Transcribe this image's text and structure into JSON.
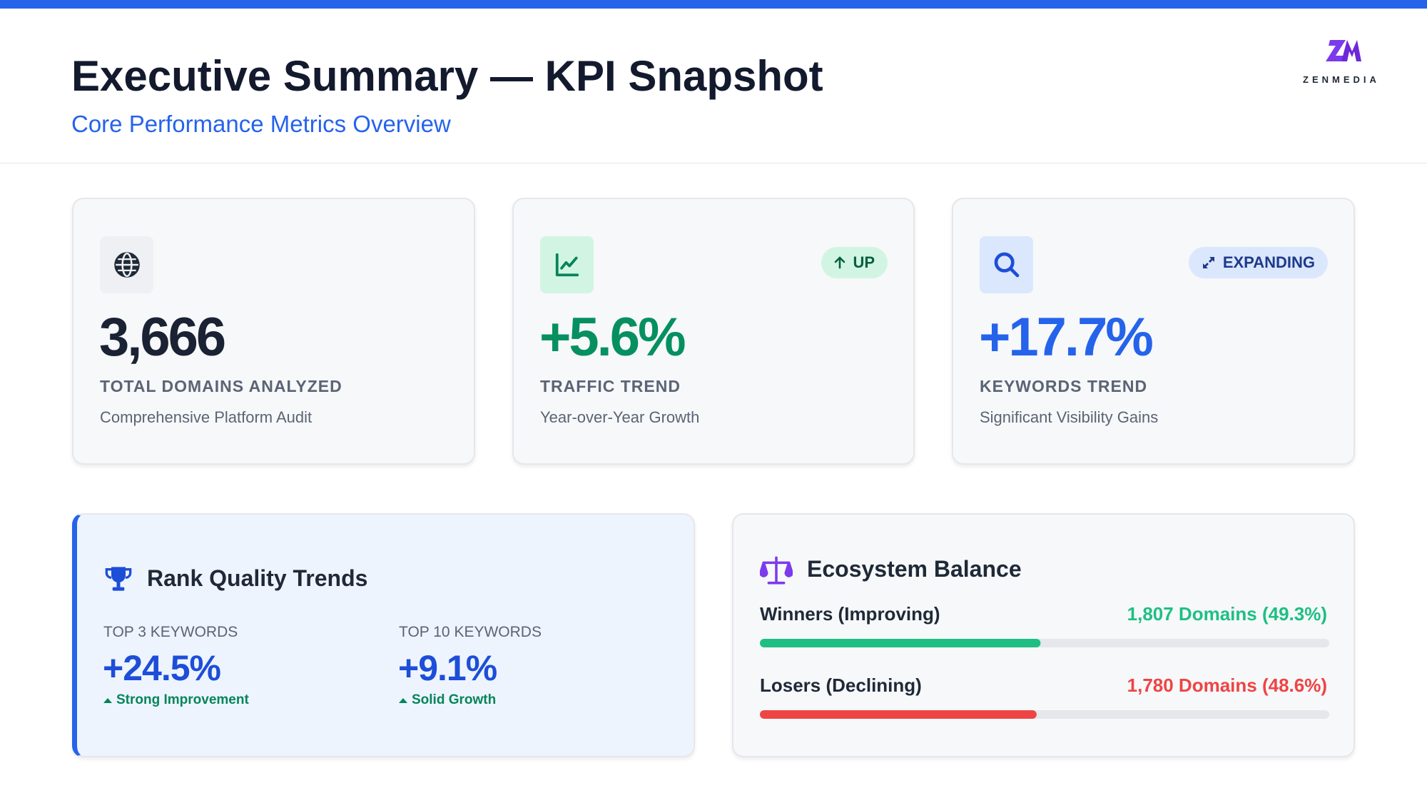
{
  "header": {
    "title": "Executive Summary — KPI Snapshot",
    "subtitle": "Core Performance Metrics Overview",
    "logo_text": "ZENMEDIA"
  },
  "kpi_cards": [
    {
      "value": "3,666",
      "label": "TOTAL DOMAINS ANALYZED",
      "description": "Comprehensive Platform Audit"
    },
    {
      "badge": "UP",
      "value": "+5.6%",
      "label": "TRAFFIC TREND",
      "description": "Year-over-Year Growth"
    },
    {
      "badge": "EXPANDING",
      "value": "+17.7%",
      "label": "KEYWORDS TREND",
      "description": "Significant Visibility Gains"
    }
  ],
  "rank_quality": {
    "title": "Rank Quality Trends",
    "metrics": [
      {
        "label": "TOP 3 KEYWORDS",
        "value": "+24.5%",
        "note": "Strong Improvement"
      },
      {
        "label": "TOP 10 KEYWORDS",
        "value": "+9.1%",
        "note": "Solid Growth"
      }
    ]
  },
  "ecosystem": {
    "title": "Ecosystem Balance",
    "rows": [
      {
        "label": "Winners (Improving)",
        "value": 49.3,
        "value_label": "1,807 Domains (49.3%)",
        "color": "#1fbf83"
      },
      {
        "label": "Losers (Declining)",
        "value": 48.6,
        "value_label": "1,780 Domains (48.6%)",
        "color": "#ef4444"
      }
    ]
  }
}
